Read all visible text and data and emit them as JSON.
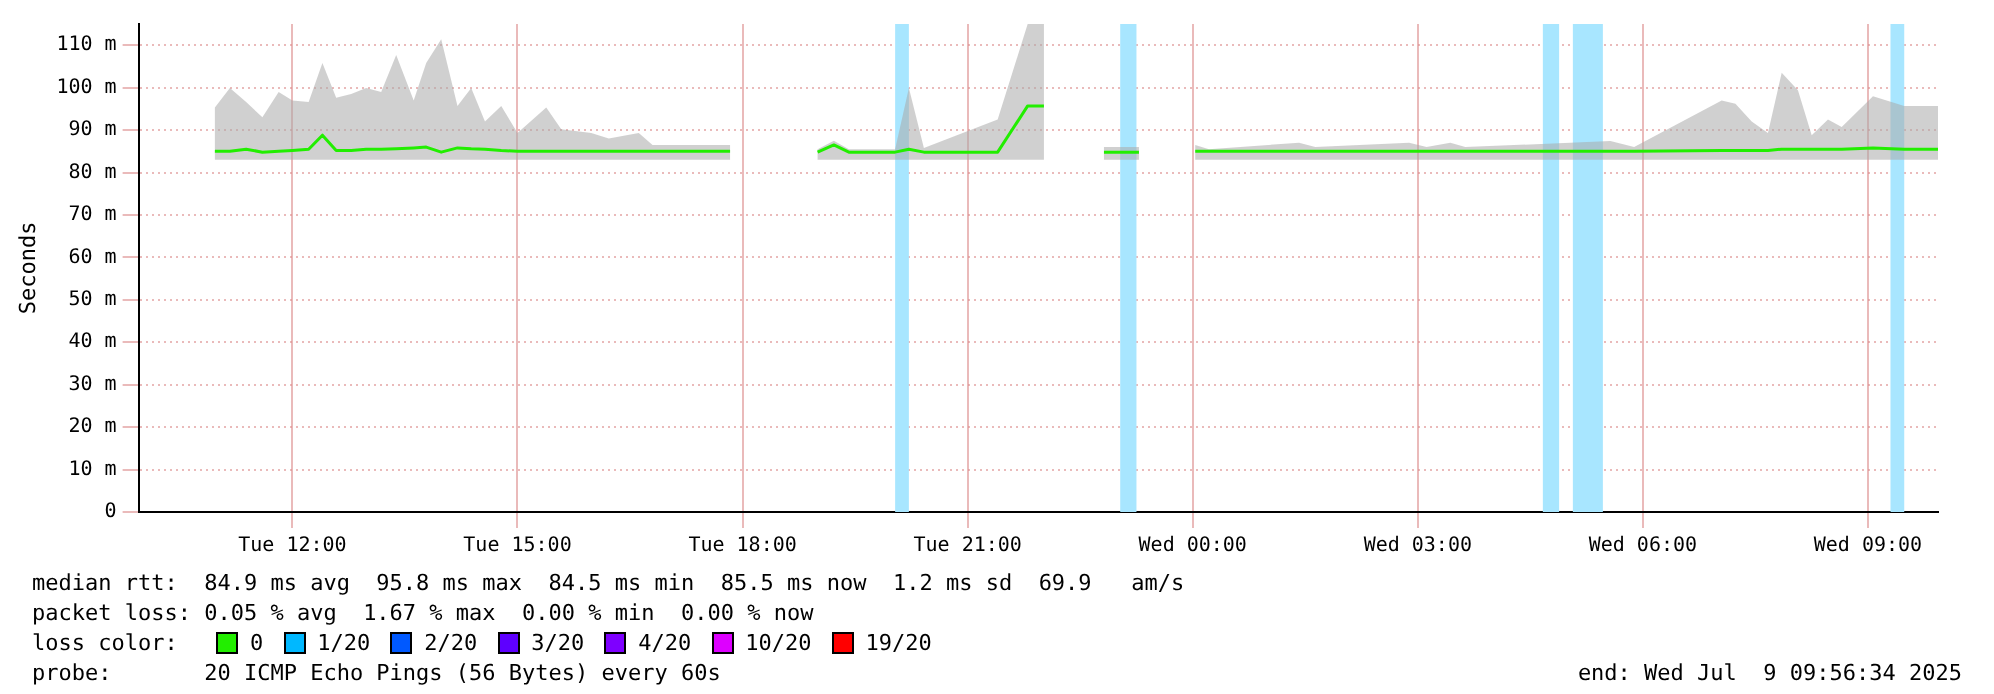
{
  "chart_data": {
    "type": "line",
    "ylabel": "Seconds",
    "xlim": [
      "2025-07-08T09:57",
      "2025-07-09T09:56"
    ],
    "xticks": [
      {
        "value": "2025-07-08T12:00",
        "label": "Tue 12:00"
      },
      {
        "value": "2025-07-08T15:00",
        "label": "Tue 15:00"
      },
      {
        "value": "2025-07-08T18:00",
        "label": "Tue 18:00"
      },
      {
        "value": "2025-07-08T21:00",
        "label": "Tue 21:00"
      },
      {
        "value": "2025-07-09T00:00",
        "label": "Wed 00:00"
      },
      {
        "value": "2025-07-09T03:00",
        "label": "Wed 03:00"
      },
      {
        "value": "2025-07-09T06:00",
        "label": "Wed 06:00"
      },
      {
        "value": "2025-07-09T09:00",
        "label": "Wed 09:00"
      }
    ],
    "ylim": [
      0,
      115
    ],
    "yticks": [
      0,
      {
        "value": 10,
        "label": "10 m"
      },
      {
        "value": 20,
        "label": "20 m"
      },
      {
        "value": 30,
        "label": "30 m"
      },
      {
        "value": 40,
        "label": "40 m"
      },
      {
        "value": 50,
        "label": "50 m"
      },
      {
        "value": 60,
        "label": "60 m"
      },
      {
        "value": 70,
        "label": "70 m"
      },
      {
        "value": 80,
        "label": "80 m"
      },
      {
        "value": 90,
        "label": "90 m"
      },
      {
        "value": 100,
        "label": "100 m"
      },
      {
        "value": 110,
        "label": "110 m"
      }
    ],
    "grid": true,
    "legend": false,
    "series": [
      {
        "color": "#22ee00",
        "x": [
          "2025-07-08T10:58",
          "2025-07-08T11:10",
          "2025-07-08T11:23",
          "2025-07-08T11:36",
          "2025-07-08T11:49",
          "2025-07-08T12:00",
          "2025-07-08T12:13",
          "2025-07-08T12:24",
          "2025-07-08T12:35",
          "2025-07-08T12:47",
          "2025-07-08T12:59",
          "2025-07-08T13:11",
          "2025-07-08T13:23",
          "2025-07-08T13:37",
          "2025-07-08T13:47",
          "2025-07-08T13:59",
          "2025-07-08T14:12",
          "2025-07-08T14:23",
          "2025-07-08T14:34",
          "2025-07-08T14:47",
          "2025-07-08T15:00",
          "2025-07-08T15:23",
          "2025-07-08T15:35",
          "2025-07-08T15:59",
          "2025-07-08T16:13",
          "2025-07-08T16:37",
          "2025-07-08T16:48",
          "2025-07-08T17:50",
          "2025-07-08T18:30",
          "2025-07-08T19:00",
          "2025-07-08T19:13",
          "2025-07-08T19:25",
          "2025-07-08T20:02",
          "2025-07-08T20:13",
          "2025-07-08T20:25",
          "2025-07-08T21:24",
          "2025-07-08T21:48",
          "2025-07-08T22:01",
          "2025-07-08T22:24",
          "2025-07-08T22:49",
          "2025-07-08T23:17",
          "2025-07-08T23:36",
          "2025-07-09T00:02",
          "2025-07-09T00:13",
          "2025-07-09T01:25",
          "2025-07-09T01:38",
          "2025-07-09T02:53",
          "2025-07-09T03:07",
          "2025-07-09T03:26",
          "2025-07-09T03:38",
          "2025-07-09T05:34",
          "2025-07-09T05:53",
          "2025-07-09T07:03",
          "2025-07-09T07:14",
          "2025-07-09T07:27",
          "2025-07-09T07:40",
          "2025-07-09T07:51",
          "2025-07-09T08:04",
          "2025-07-09T08:15",
          "2025-07-09T08:28",
          "2025-07-09T08:39",
          "2025-07-09T09:04",
          "2025-07-09T09:29",
          "2025-07-09T09:52",
          "2025-07-09T09:56"
        ],
        "values": [
          85,
          85,
          85.5,
          84.8,
          85,
          85.2,
          85.5,
          88.8,
          85.2,
          85.2,
          85.5,
          85.5,
          85.6,
          85.8,
          86,
          84.8,
          85.8,
          85.6,
          85.5,
          85.2,
          85,
          85,
          85,
          85,
          85,
          85,
          85,
          85,
          null,
          84.8,
          86.5,
          84.8,
          84.8,
          85.5,
          84.8,
          84.8,
          95.7,
          95.7,
          null,
          84.8,
          84.8,
          null,
          85,
          85,
          85,
          85,
          85,
          85,
          85,
          85,
          85,
          85,
          85.2,
          85.2,
          85.2,
          85.2,
          85.5,
          85.5,
          85.5,
          85.5,
          85.5,
          85.8,
          85.5,
          85.5,
          85.5
        ],
        "lower": [
          83,
          83,
          83,
          83,
          83,
          83,
          83,
          83,
          83,
          83,
          83,
          83,
          83,
          83,
          83,
          83,
          83,
          83,
          83,
          83,
          83,
          83,
          83,
          83,
          83,
          83,
          83,
          83,
          null,
          83,
          83,
          83,
          83,
          83,
          83,
          83,
          83,
          83,
          null,
          83,
          83,
          null,
          83,
          83,
          83,
          83,
          83,
          83,
          83,
          83,
          83,
          83,
          83,
          83,
          83,
          83,
          83,
          83,
          83,
          83,
          83,
          83,
          83,
          83,
          83
        ],
        "upper": [
          95.3,
          99.9,
          96.6,
          93,
          99,
          97,
          96.6,
          105.8,
          97.6,
          98.5,
          99.9,
          99,
          107.7,
          97,
          105.8,
          111.4,
          95.7,
          99.9,
          92,
          95.7,
          89.3,
          95.3,
          90.2,
          89.3,
          88,
          89.3,
          86.5,
          86.5,
          null,
          85.5,
          87.5,
          85.5,
          85.5,
          99.9,
          85.8,
          92.5,
          115,
          115,
          null,
          86,
          86,
          null,
          86.5,
          85.5,
          87,
          86,
          87,
          86,
          87,
          86,
          87.4,
          86,
          97,
          96.2,
          92,
          89.3,
          103.5,
          99.4,
          88.8,
          92.5,
          90.7,
          98,
          95.7,
          95.7,
          95.7
        ]
      }
    ],
    "bands": [
      {
        "axis": "x",
        "from": "2025-07-08T20:02",
        "to": "2025-07-08T20:13",
        "color": "#a8e6ff"
      },
      {
        "axis": "x",
        "from": "2025-07-08T23:02",
        "to": "2025-07-08T23:15",
        "color": "#a8e6ff"
      },
      {
        "axis": "x",
        "from": "2025-07-09T04:40",
        "to": "2025-07-09T04:53",
        "color": "#a8e6ff"
      },
      {
        "axis": "x",
        "from": "2025-07-09T05:04",
        "to": "2025-07-09T05:28",
        "color": "#a8e6ff"
      },
      {
        "axis": "x",
        "from": "2025-07-09T09:18",
        "to": "2025-07-09T09:29",
        "color": "#a8e6ff"
      }
    ],
    "annotations": [
      "median rtt:  84.9 ms avg  95.8 ms max  84.5 ms min  85.5 ms now  1.2 ms sd  69.9   am/s",
      "packet loss: 0.05 % avg  1.67 % max  0.00 % min  0.00 % now",
      "loss color:",
      "0",
      "1/20",
      "2/20",
      "3/20",
      "4/20",
      "10/20",
      "19/20",
      "probe:       20 ICMP Echo Pings (56 Bytes) every 60s",
      "end: Wed Jul  9 09:56:34 2025"
    ]
  }
}
